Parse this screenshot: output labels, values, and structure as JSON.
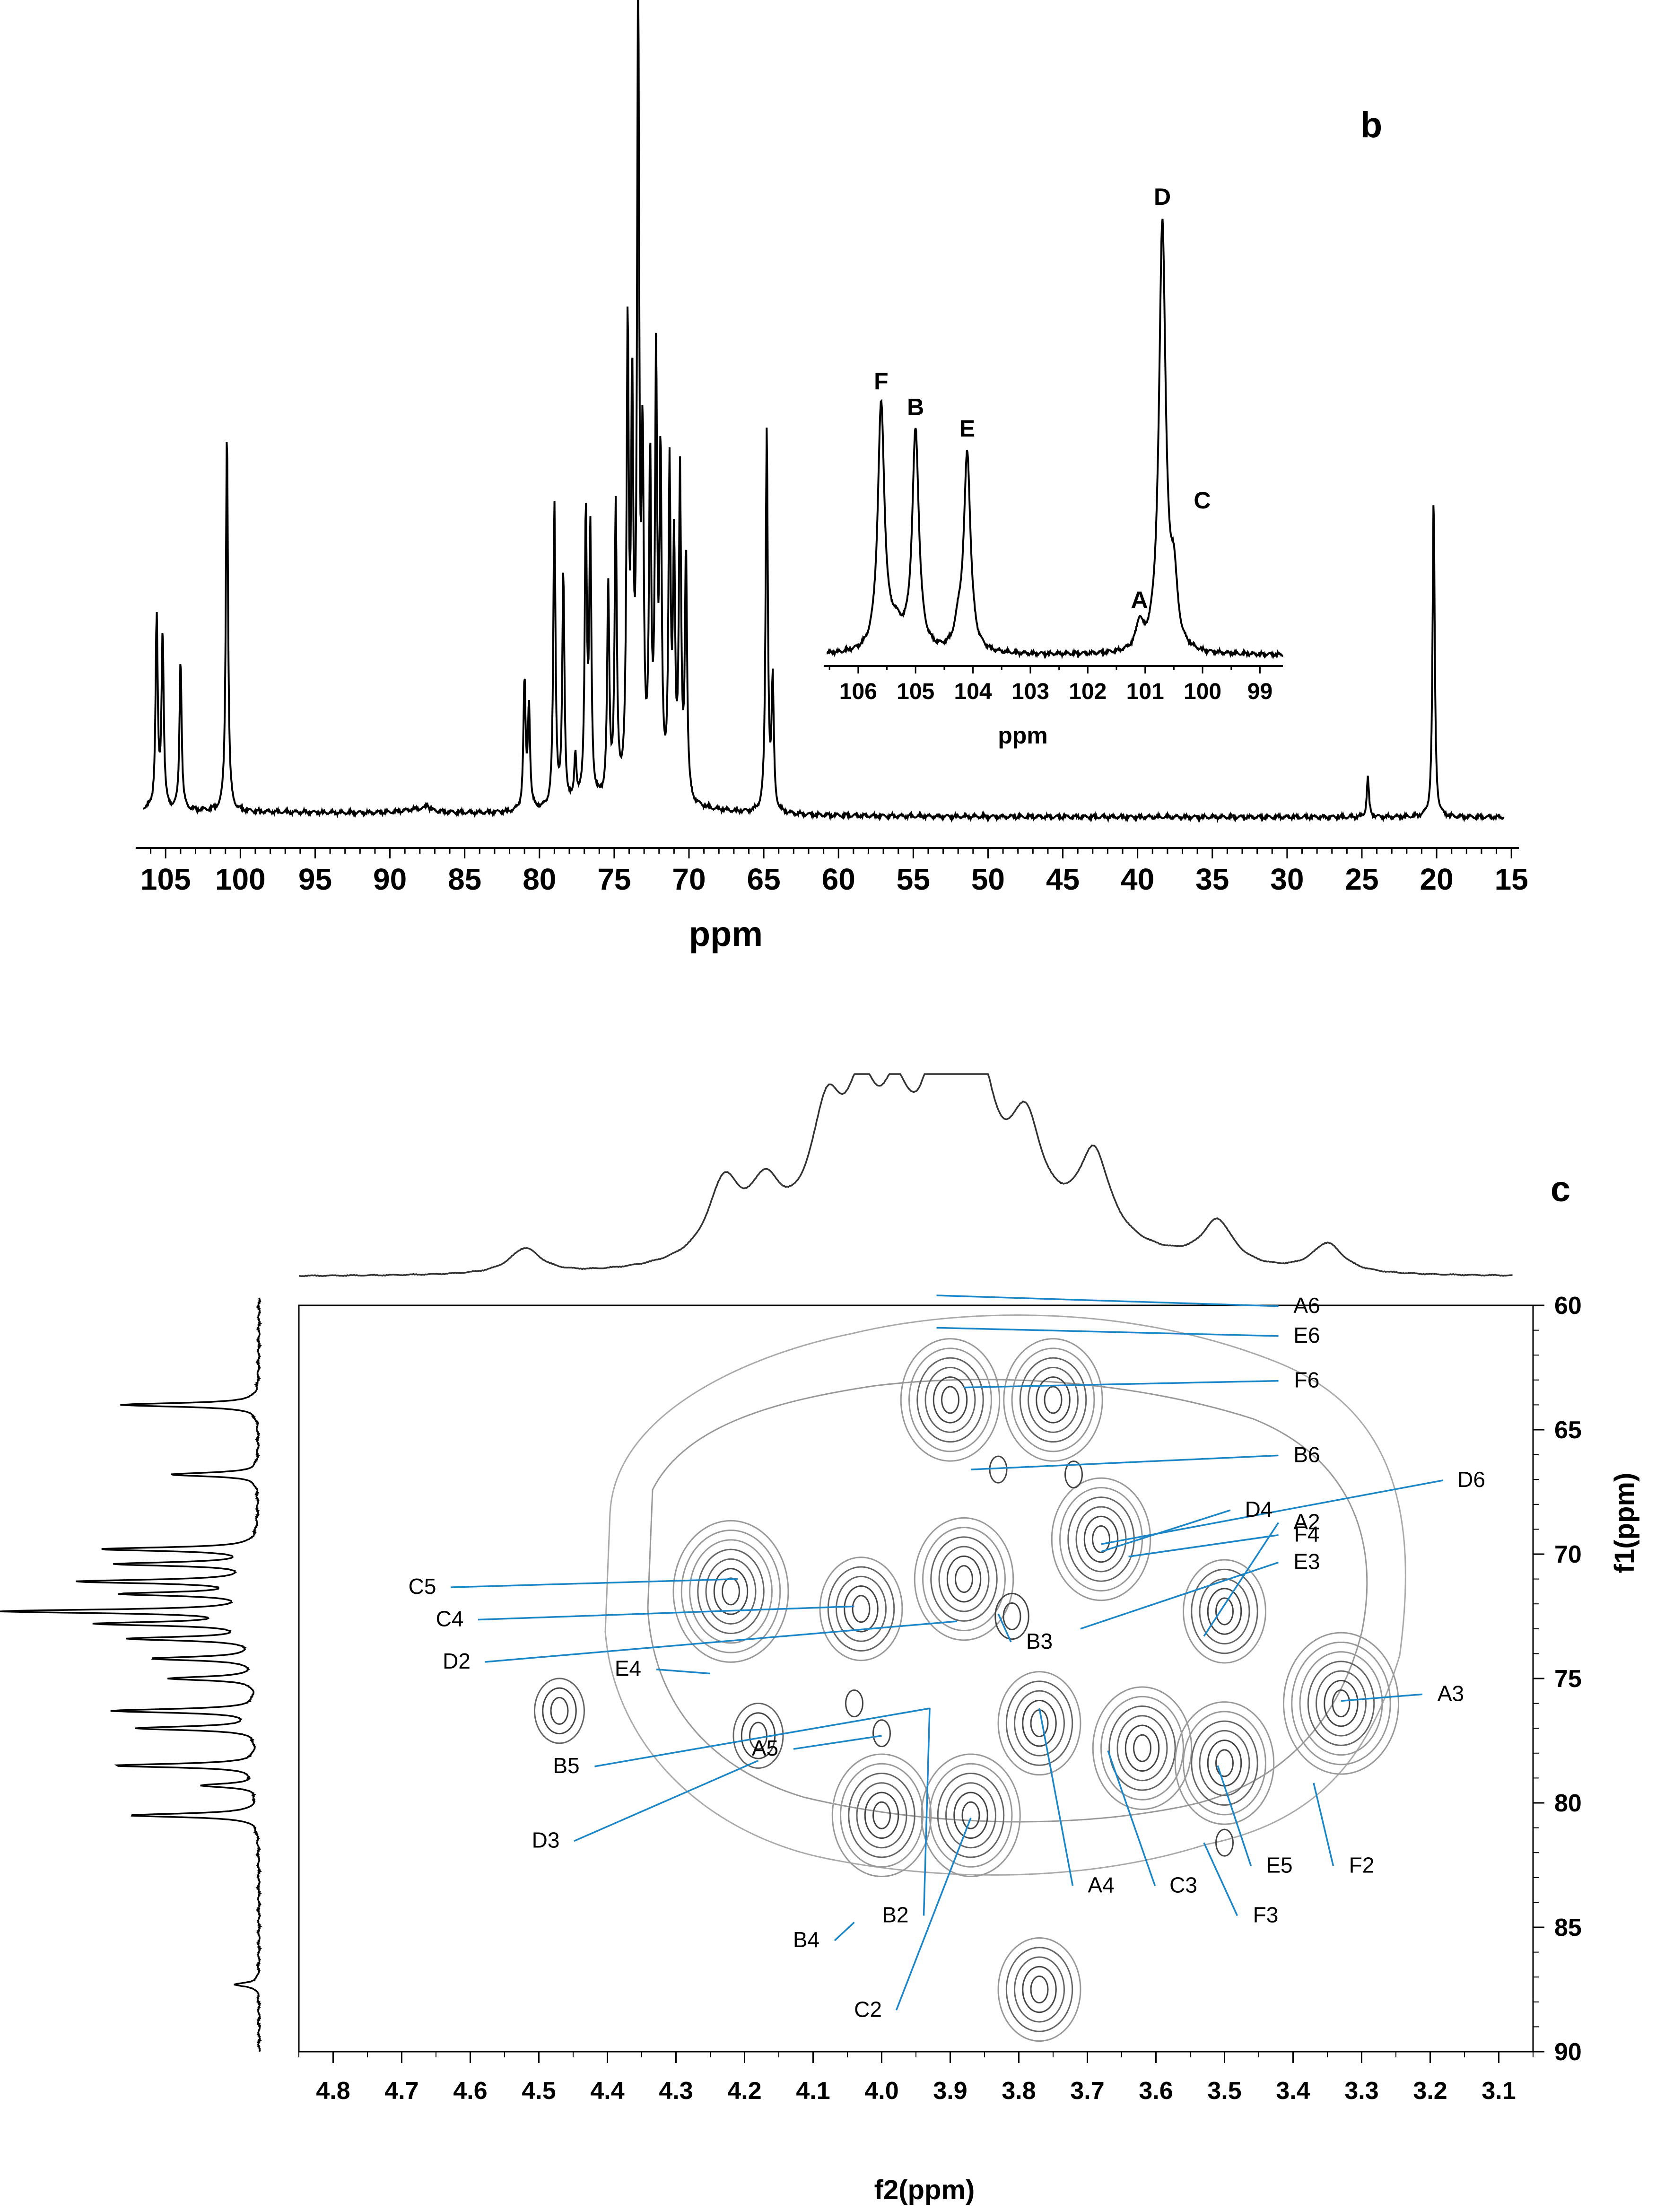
{
  "chart_data": [
    {
      "type": "line",
      "panel_label": "b",
      "xlabel": "ppm",
      "xlim": [
        107,
        14.5
      ],
      "x_ticks": [
        105,
        100,
        95,
        90,
        85,
        80,
        75,
        70,
        65,
        60,
        55,
        50,
        45,
        40,
        35,
        30,
        25,
        20,
        15
      ],
      "peaks": [
        {
          "ppm": 105.6,
          "height": 0.24
        },
        {
          "ppm": 105.2,
          "height": 0.22
        },
        {
          "ppm": 104.0,
          "height": 0.19
        },
        {
          "ppm": 100.9,
          "height": 0.48
        },
        {
          "ppm": 87.5,
          "height": 0.008
        },
        {
          "ppm": 81.0,
          "height": 0.16
        },
        {
          "ppm": 80.7,
          "height": 0.13
        },
        {
          "ppm": 79.0,
          "height": 0.38
        },
        {
          "ppm": 78.4,
          "height": 0.29
        },
        {
          "ppm": 77.6,
          "height": 0.06
        },
        {
          "ppm": 76.9,
          "height": 0.36
        },
        {
          "ppm": 76.6,
          "height": 0.33
        },
        {
          "ppm": 75.4,
          "height": 0.26
        },
        {
          "ppm": 74.9,
          "height": 0.36
        },
        {
          "ppm": 74.1,
          "height": 0.57
        },
        {
          "ppm": 73.8,
          "height": 0.48
        },
        {
          "ppm": 73.4,
          "height": 1.0
        },
        {
          "ppm": 73.1,
          "height": 0.4
        },
        {
          "ppm": 72.6,
          "height": 0.41
        },
        {
          "ppm": 72.2,
          "height": 0.53
        },
        {
          "ppm": 71.9,
          "height": 0.41
        },
        {
          "ppm": 71.3,
          "height": 0.4
        },
        {
          "ppm": 71.0,
          "height": 0.3
        },
        {
          "ppm": 70.6,
          "height": 0.4
        },
        {
          "ppm": 70.2,
          "height": 0.31
        },
        {
          "ppm": 64.8,
          "height": 0.48
        },
        {
          "ppm": 64.4,
          "height": 0.16
        },
        {
          "ppm": 24.6,
          "height": 0.05
        },
        {
          "ppm": 20.2,
          "height": 0.4
        }
      ],
      "inset": {
        "xlabel": "ppm",
        "xlim": [
          106.6,
          98.6
        ],
        "x_ticks": [
          106,
          105,
          104,
          103,
          102,
          101,
          100,
          99
        ],
        "peaks": [
          {
            "ppm": 105.6,
            "height": 0.57,
            "label": "F"
          },
          {
            "ppm": 105.0,
            "height": 0.51,
            "label": "B"
          },
          {
            "ppm": 104.1,
            "height": 0.46,
            "label": "E"
          },
          {
            "ppm": 101.1,
            "height": 0.06,
            "label": "A"
          },
          {
            "ppm": 100.7,
            "height": 1.0,
            "label": "D"
          },
          {
            "ppm": 100.5,
            "height": 0.15,
            "label": "C"
          }
        ]
      }
    },
    {
      "type": "heatmap",
      "panel_label": "c",
      "xlabel": "f2(ppm)",
      "ylabel": "f1(ppm)",
      "xlim": [
        4.85,
        3.05
      ],
      "ylim": [
        60,
        90
      ],
      "x_ticks": [
        "4.8",
        "4.7",
        "4.6",
        "4.5",
        "4.4",
        "4.3",
        "4.2",
        "4.1",
        "4.0",
        "3.9",
        "3.8",
        "3.7",
        "3.6",
        "3.5",
        "3.4",
        "3.3",
        "3.2",
        "3.1"
      ],
      "y_ticks": [
        60,
        65,
        70,
        75,
        80,
        85,
        90
      ],
      "cross_peaks": [
        {
          "f2": 3.9,
          "f1": 63.8,
          "levels": 6
        },
        {
          "f2": 3.75,
          "f1": 63.8,
          "levels": 6
        },
        {
          "f2": 3.68,
          "f1": 69.4,
          "levels": 6
        },
        {
          "f2": 4.22,
          "f1": 71.5,
          "levels": 7
        },
        {
          "f2": 4.03,
          "f1": 72.2,
          "levels": 5
        },
        {
          "f2": 3.88,
          "f1": 71.0,
          "levels": 6
        },
        {
          "f2": 3.5,
          "f1": 72.3,
          "levels": 5
        },
        {
          "f2": 3.33,
          "f1": 76.0,
          "levels": 7
        },
        {
          "f2": 3.77,
          "f1": 76.8,
          "levels": 5
        },
        {
          "f2": 3.62,
          "f1": 77.8,
          "levels": 6
        },
        {
          "f2": 3.5,
          "f1": 78.4,
          "levels": 6
        },
        {
          "f2": 4.0,
          "f1": 80.5,
          "levels": 6
        },
        {
          "f2": 3.87,
          "f1": 80.5,
          "levels": 6
        },
        {
          "f2": 3.77,
          "f1": 87.5,
          "levels": 5
        },
        {
          "f2": 4.47,
          "f1": 76.3,
          "levels": 3
        },
        {
          "f2": 4.18,
          "f1": 77.3,
          "levels": 3
        },
        {
          "f2": 3.81,
          "f1": 72.5,
          "levels": 2
        },
        {
          "f2": 4.04,
          "f1": 76.0,
          "levels": 1
        },
        {
          "f2": 4.0,
          "f1": 77.2,
          "levels": 1
        },
        {
          "f2": 3.5,
          "f1": 81.6,
          "levels": 1
        },
        {
          "f2": 3.83,
          "f1": 66.6,
          "levels": 1
        },
        {
          "f2": 3.72,
          "f1": 66.8,
          "levels": 1
        }
      ],
      "annotations": [
        {
          "label": "A6",
          "text_f2": 3.38,
          "text_f1": 60.3,
          "target_f2": 3.92,
          "target_f1": 59.6
        },
        {
          "label": "E6",
          "text_f2": 3.38,
          "text_f1": 61.5,
          "target_f2": 3.92,
          "target_f1": 60.9
        },
        {
          "label": "F6",
          "text_f2": 3.38,
          "text_f1": 63.3,
          "target_f2": 3.88,
          "target_f1": 63.3
        },
        {
          "label": "B6",
          "text_f2": 3.38,
          "text_f1": 66.3,
          "target_f2": 3.87,
          "target_f1": 66.6
        },
        {
          "label": "D6",
          "text_f2": 3.14,
          "text_f1": 67.3,
          "target_f2": 3.68,
          "target_f1": 69.6
        },
        {
          "label": "D4",
          "text_f2": 3.45,
          "text_f1": 68.5,
          "target_f2": 3.68,
          "target_f1": 69.9
        },
        {
          "label": "A2",
          "text_f2": 3.38,
          "text_f1": 69.0,
          "target_f2": 3.53,
          "target_f1": 73.3
        },
        {
          "label": "F4",
          "text_f2": 3.38,
          "text_f1": 69.5,
          "target_f2": 3.64,
          "target_f1": 70.1
        },
        {
          "label": "E3",
          "text_f2": 3.38,
          "text_f1": 70.6,
          "target_f2": 3.71,
          "target_f1": 73.0
        },
        {
          "label": "C5",
          "text_f2": 4.67,
          "text_f1": 71.6,
          "target_f2": 4.21,
          "target_f1": 71.0
        },
        {
          "label": "C4",
          "text_f2": 4.63,
          "text_f1": 72.9,
          "target_f2": 4.04,
          "target_f1": 72.1
        },
        {
          "label": "B3",
          "text_f2": 3.77,
          "text_f1": 73.8,
          "target_f2": 3.83,
          "target_f1": 72.4
        },
        {
          "label": "D2",
          "text_f2": 4.62,
          "text_f1": 74.6,
          "target_f2": 3.89,
          "target_f1": 72.7
        },
        {
          "label": "E4",
          "text_f2": 4.37,
          "text_f1": 74.9,
          "target_f2": 4.25,
          "target_f1": 74.8
        },
        {
          "label": "A3",
          "text_f2": 3.17,
          "text_f1": 75.9,
          "target_f2": 3.33,
          "target_f1": 75.9
        },
        {
          "label": "B5",
          "text_f2": 4.46,
          "text_f1": 78.8,
          "target_f2": 3.93,
          "target_f1": 76.2
        },
        {
          "label": "A5",
          "text_f2": 4.17,
          "text_f1": 78.1,
          "target_f2": 4.0,
          "target_f1": 77.3
        },
        {
          "label": "D3",
          "text_f2": 4.49,
          "text_f1": 81.8,
          "target_f2": 4.18,
          "target_f1": 78.3
        },
        {
          "label": "E5",
          "text_f2": 3.42,
          "text_f1": 82.8,
          "target_f2": 3.51,
          "target_f1": 78.5
        },
        {
          "label": "F2",
          "text_f2": 3.3,
          "text_f1": 82.8,
          "target_f2": 3.37,
          "target_f1": 79.2
        },
        {
          "label": "A4",
          "text_f2": 3.68,
          "text_f1": 83.6,
          "target_f2": 3.77,
          "target_f1": 76.2
        },
        {
          "label": "C3",
          "text_f2": 3.56,
          "text_f1": 83.6,
          "target_f2": 3.67,
          "target_f1": 77.9
        },
        {
          "label": "F3",
          "text_f2": 3.44,
          "text_f1": 84.8,
          "target_f2": 3.53,
          "target_f1": 81.6
        },
        {
          "label": "B2",
          "text_f2": 3.98,
          "text_f1": 84.8,
          "target_f2": 3.93,
          "target_f1": 76.2
        },
        {
          "label": "B4",
          "text_f2": 4.11,
          "text_f1": 85.8,
          "target_f2": 4.04,
          "target_f1": 84.8
        },
        {
          "label": "C2",
          "text_f2": 4.02,
          "text_f1": 88.6,
          "target_f2": 3.87,
          "target_f1": 80.6
        }
      ],
      "projection_f2_peaks": [
        {
          "ppm": 4.52,
          "height": 0.14
        },
        {
          "ppm": 4.23,
          "height": 0.39
        },
        {
          "ppm": 4.17,
          "height": 0.3
        },
        {
          "ppm": 4.08,
          "height": 0.59
        },
        {
          "ppm": 4.03,
          "height": 0.57
        },
        {
          "ppm": 3.98,
          "height": 0.49
        },
        {
          "ppm": 3.91,
          "height": 1.0
        },
        {
          "ppm": 3.86,
          "height": 0.67
        },
        {
          "ppm": 3.79,
          "height": 0.5
        },
        {
          "ppm": 3.69,
          "height": 0.46
        },
        {
          "ppm": 3.51,
          "height": 0.24
        },
        {
          "ppm": 3.35,
          "height": 0.16
        }
      ],
      "projection_f1_peaks": [
        {
          "ppm": 64.0,
          "height": 0.55
        },
        {
          "ppm": 66.8,
          "height": 0.35
        },
        {
          "ppm": 69.8,
          "height": 0.62
        },
        {
          "ppm": 70.4,
          "height": 0.55
        },
        {
          "ppm": 71.1,
          "height": 0.7
        },
        {
          "ppm": 71.6,
          "height": 0.52
        },
        {
          "ppm": 72.3,
          "height": 1.0
        },
        {
          "ppm": 72.8,
          "height": 0.62
        },
        {
          "ppm": 73.4,
          "height": 0.5
        },
        {
          "ppm": 74.2,
          "height": 0.42
        },
        {
          "ppm": 75.0,
          "height": 0.35
        },
        {
          "ppm": 76.3,
          "height": 0.58
        },
        {
          "ppm": 77.0,
          "height": 0.48
        },
        {
          "ppm": 78.5,
          "height": 0.57
        },
        {
          "ppm": 79.3,
          "height": 0.22
        },
        {
          "ppm": 80.5,
          "height": 0.52
        },
        {
          "ppm": 87.3,
          "height": 0.1
        }
      ]
    }
  ]
}
